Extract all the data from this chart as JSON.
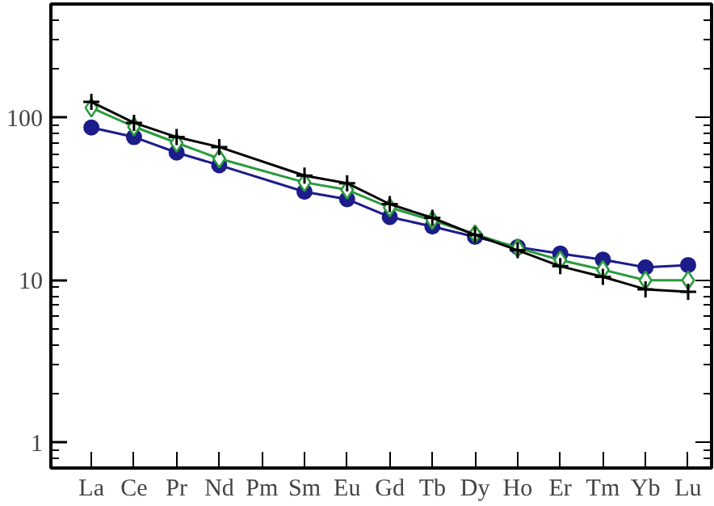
{
  "chart_data": {
    "type": "line",
    "categories": [
      "La",
      "Ce",
      "Pr",
      "Nd",
      "Pm",
      "Sm",
      "Eu",
      "Gd",
      "Tb",
      "Dy",
      "Ho",
      "Er",
      "Tm",
      "Yb",
      "Lu"
    ],
    "log": "y",
    "ylim": [
      0.7,
      500
    ],
    "yticks": [
      1,
      10,
      100
    ],
    "grid": false,
    "series": [
      {
        "color": "#1c1c8a",
        "marker": "circle",
        "values": [
          87,
          76,
          61,
          51,
          null,
          35,
          31.5,
          24.5,
          21.4,
          18.5,
          16,
          14.6,
          13.4,
          12,
          12.4
        ]
      },
      {
        "color": "#2a9a3c",
        "marker": "diamond",
        "values": [
          115,
          88,
          70,
          56,
          null,
          40,
          36,
          28,
          23.4,
          19.2,
          15.8,
          13.3,
          11.6,
          10,
          10
        ]
      },
      {
        "color": "#000000",
        "marker": "cross",
        "values": [
          125,
          93,
          76,
          66,
          null,
          44,
          39.5,
          29.4,
          24.2,
          19,
          15.3,
          12.2,
          10.5,
          8.8,
          8.5
        ]
      }
    ]
  }
}
